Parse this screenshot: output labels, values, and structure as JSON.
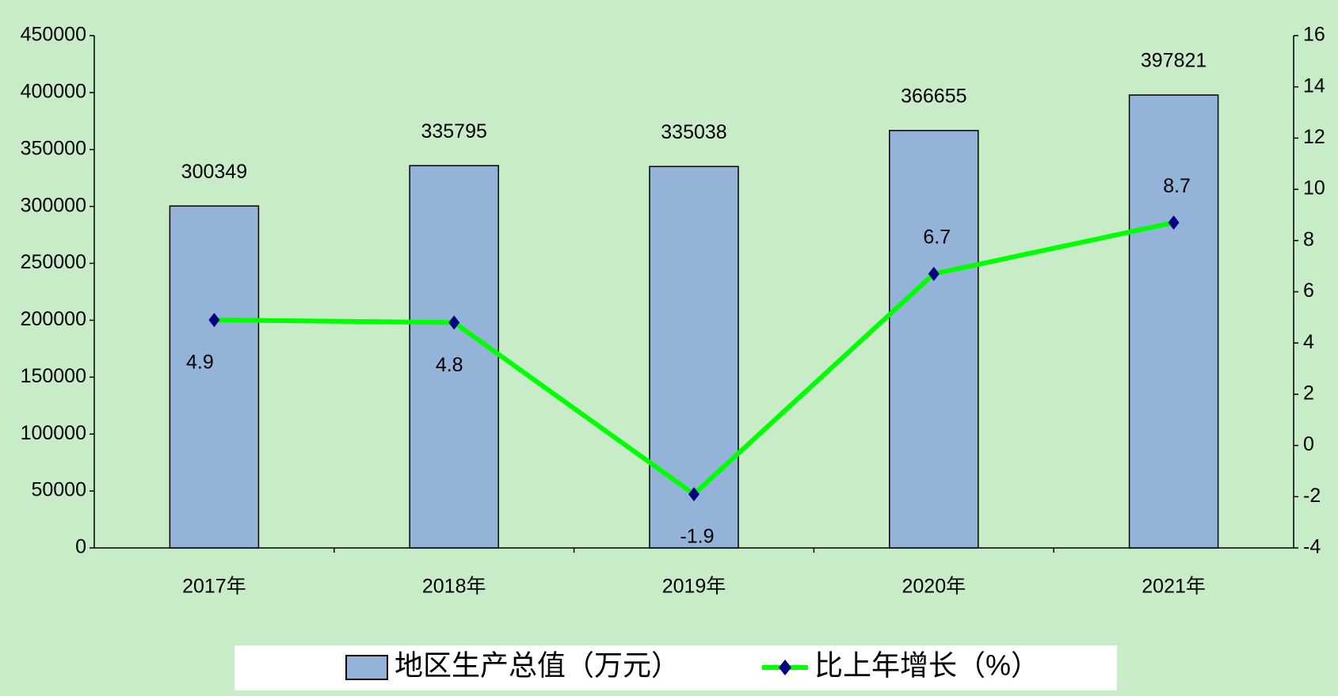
{
  "chart_data": {
    "type": "bar",
    "categories": [
      "2017年",
      "2018年",
      "2019年",
      "2020年",
      "2021年"
    ],
    "series": [
      {
        "name": "地区生产总值（万元）",
        "type": "bar",
        "color": "#94b3d9",
        "values": [
          300349,
          335795,
          335038,
          366655,
          397821
        ]
      },
      {
        "name": "比上年增长（%）",
        "type": "line",
        "axis": "y2",
        "color": "#00ff00",
        "marker_color": "#000080",
        "values": [
          4.9,
          4.8,
          -1.9,
          6.7,
          8.7
        ]
      }
    ],
    "ylim": [
      0,
      450000
    ],
    "yticks": [
      0,
      50000,
      100000,
      150000,
      200000,
      250000,
      300000,
      350000,
      400000,
      450000
    ],
    "y2lim": [
      -4,
      16
    ],
    "y2ticks": [
      -4,
      -2,
      0,
      2,
      4,
      6,
      8,
      10,
      12,
      14,
      16
    ],
    "grid": false,
    "legend": "bottom"
  }
}
